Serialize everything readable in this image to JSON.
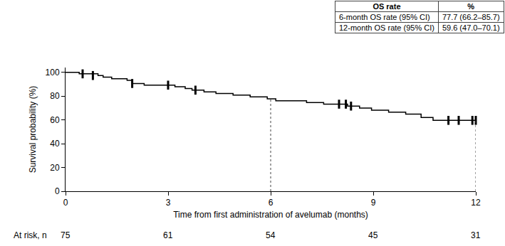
{
  "chart_data": {
    "type": "step",
    "x_label": "Time from first administration of avelumab (months)",
    "y_label": "Survival probability (%)",
    "color": "#000000",
    "grid": false,
    "x": [
      0,
      0.4,
      0.95,
      1.1,
      1.35,
      1.8,
      1.95,
      2.3,
      3.2,
      3.5,
      3.7,
      4.05,
      4.4,
      4.9,
      5.4,
      5.9,
      6.15,
      7.05,
      7.55,
      8.25,
      8.6,
      8.95,
      9.45,
      9.95,
      10.4,
      10.75,
      12
    ],
    "values": [
      100,
      98.7,
      97.3,
      96.0,
      94.6,
      93.3,
      90.6,
      89.2,
      87.8,
      86.4,
      85.0,
      83.6,
      82.2,
      80.8,
      79.4,
      77.7,
      76.0,
      74.6,
      73.2,
      71.6,
      69.9,
      68.2,
      66.5,
      64.8,
      62.0,
      59.6,
      59.6
    ],
    "censored": {
      "marker": "line-ns",
      "x": [
        0.5,
        0.8,
        1.95,
        3.0,
        3.8,
        8.0,
        8.2,
        8.35,
        11.2,
        11.5,
        11.9,
        12.0
      ],
      "values": [
        98.7,
        97.3,
        90.6,
        89.2,
        85.0,
        73.2,
        73.2,
        71.6,
        59.6,
        59.6,
        59.6,
        59.6
      ]
    },
    "reference_lines": [
      {
        "x": 6,
        "y": 77.7
      },
      {
        "x": 12,
        "y": 59.6
      }
    ],
    "xlim": [
      0,
      12
    ],
    "ylim": [
      0,
      104
    ],
    "xticks": [
      0,
      3,
      6,
      9,
      12
    ],
    "yticks": [
      0,
      20,
      40,
      60,
      80,
      100
    ],
    "at_risk": {
      "label": "At risk, n",
      "x": [
        0,
        3,
        6,
        9,
        12
      ],
      "values": [
        75,
        61,
        54,
        45,
        31
      ]
    },
    "table": {
      "header": [
        "OS rate",
        "%"
      ],
      "rows": [
        [
          "6-month OS rate (95% CI)",
          "77.7 (66.2–85.7)"
        ],
        [
          "12-month OS rate (95% CI)",
          "59.6 (47.0–70.1)"
        ]
      ]
    }
  }
}
